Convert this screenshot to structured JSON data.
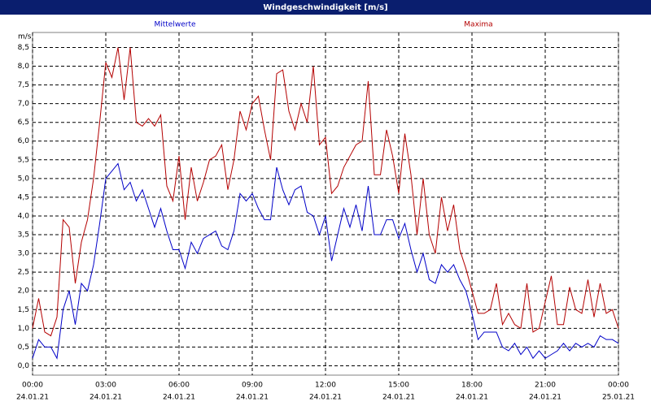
{
  "chart_data": {
    "type": "line",
    "title": "Windgeschwindigkeit [m/s]",
    "y_unit": "m/s",
    "x": [
      0,
      0.25,
      0.5,
      0.75,
      1,
      1.25,
      1.5,
      1.75,
      2,
      2.25,
      2.5,
      2.75,
      3,
      3.25,
      3.5,
      3.75,
      4,
      4.25,
      4.5,
      4.75,
      5,
      5.25,
      5.5,
      5.75,
      6,
      6.25,
      6.5,
      6.75,
      7,
      7.25,
      7.5,
      7.75,
      8,
      8.25,
      8.5,
      8.75,
      9,
      9.25,
      9.5,
      9.75,
      10,
      10.25,
      10.5,
      10.75,
      11,
      11.25,
      11.5,
      11.75,
      12,
      12.25,
      12.5,
      12.75,
      13,
      13.25,
      13.5,
      13.75,
      14,
      14.25,
      14.5,
      14.75,
      15,
      15.25,
      15.5,
      15.75,
      16,
      16.25,
      16.5,
      16.75,
      17,
      17.25,
      17.5,
      17.75,
      18,
      18.25,
      18.5,
      18.75,
      19,
      19.25,
      19.5,
      19.75,
      20,
      20.25,
      20.5,
      20.75,
      21,
      21.25,
      21.5,
      21.75,
      22,
      22.25,
      22.5,
      22.75,
      23,
      23.25,
      23.5,
      23.75,
      24
    ],
    "series": [
      {
        "name": "Mittelwerte",
        "color": "#0000c8",
        "values": [
          0.2,
          0.7,
          0.5,
          0.5,
          0.2,
          1.5,
          2.0,
          1.1,
          2.2,
          2.0,
          2.7,
          3.8,
          5.0,
          5.2,
          5.4,
          4.7,
          4.9,
          4.4,
          4.7,
          4.2,
          3.7,
          4.2,
          3.6,
          3.1,
          3.1,
          2.6,
          3.3,
          3.0,
          3.4,
          3.5,
          3.6,
          3.2,
          3.1,
          3.6,
          4.6,
          4.4,
          4.6,
          4.2,
          3.9,
          3.9,
          5.3,
          4.7,
          4.3,
          4.7,
          4.8,
          4.1,
          4.0,
          3.5,
          4.0,
          2.8,
          3.5,
          4.2,
          3.7,
          4.3,
          3.6,
          4.8,
          3.5,
          3.5,
          3.9,
          3.9,
          3.4,
          3.8,
          3.1,
          2.5,
          3.0,
          2.3,
          2.2,
          2.7,
          2.5,
          2.7,
          2.3,
          2.0,
          1.4,
          0.7,
          0.9,
          0.9,
          0.9,
          0.5,
          0.4,
          0.6,
          0.3,
          0.5,
          0.2,
          0.4,
          0.2,
          0.3,
          0.4,
          0.6,
          0.4,
          0.6,
          0.5,
          0.6,
          0.5,
          0.8,
          0.7,
          0.7,
          0.6
        ]
      },
      {
        "name": "Maxima",
        "color": "#b40000",
        "values": [
          1.0,
          1.8,
          0.9,
          0.8,
          1.3,
          3.9,
          3.7,
          2.2,
          3.3,
          3.9,
          5.0,
          6.5,
          8.1,
          7.7,
          8.5,
          7.1,
          8.5,
          6.5,
          6.4,
          6.6,
          6.4,
          6.7,
          4.8,
          4.4,
          5.6,
          3.9,
          5.3,
          4.4,
          4.9,
          5.5,
          5.6,
          5.9,
          4.7,
          5.5,
          6.8,
          6.3,
          7.0,
          7.2,
          6.3,
          5.5,
          7.8,
          7.9,
          6.8,
          6.3,
          7.0,
          6.5,
          8.0,
          5.9,
          6.1,
          4.6,
          4.8,
          5.3,
          5.6,
          5.9,
          6.0,
          7.6,
          5.1,
          5.1,
          6.3,
          5.6,
          4.6,
          6.2,
          5.1,
          3.5,
          5.0,
          3.5,
          3.0,
          4.5,
          3.6,
          4.3,
          3.1,
          2.6,
          2.0,
          1.4,
          1.4,
          1.5,
          2.2,
          1.1,
          1.4,
          1.1,
          1.0,
          2.2,
          0.9,
          1.0,
          1.7,
          2.4,
          1.1,
          1.1,
          2.1,
          1.5,
          1.4,
          2.3,
          1.3,
          2.2,
          1.4,
          1.5,
          1.0
        ]
      }
    ],
    "xlim": [
      0,
      24
    ],
    "xticks": [
      {
        "value": 0,
        "label": "00:00"
      },
      {
        "value": 3,
        "label": "03:00"
      },
      {
        "value": 6,
        "label": "06:00"
      },
      {
        "value": 9,
        "label": "09:00"
      },
      {
        "value": 12,
        "label": "12:00"
      },
      {
        "value": 15,
        "label": "15:00"
      },
      {
        "value": 18,
        "label": "18:00"
      },
      {
        "value": 21,
        "label": "21:00"
      },
      {
        "value": 24,
        "label": "00:00"
      }
    ],
    "xtick_dates": [
      "24.01.21",
      "24.01.21",
      "24.01.21",
      "24.01.21",
      "24.01.21",
      "24.01.21",
      "24.01.21",
      "24.01.21",
      "25.01.21"
    ],
    "ylim": [
      -0.25,
      8.9
    ],
    "yticks": [
      {
        "value": 0,
        "label": "0,0"
      },
      {
        "value": 0.5,
        "label": "0,5"
      },
      {
        "value": 1,
        "label": "1,0"
      },
      {
        "value": 1.5,
        "label": "1,5"
      },
      {
        "value": 2,
        "label": "2,0"
      },
      {
        "value": 2.5,
        "label": "2,5"
      },
      {
        "value": 3,
        "label": "3,0"
      },
      {
        "value": 3.5,
        "label": "3,5"
      },
      {
        "value": 4,
        "label": "4,0"
      },
      {
        "value": 4.5,
        "label": "4,5"
      },
      {
        "value": 5,
        "label": "5,0"
      },
      {
        "value": 5.5,
        "label": "5,5"
      },
      {
        "value": 6,
        "label": "6,0"
      },
      {
        "value": 6.5,
        "label": "6,5"
      },
      {
        "value": 7,
        "label": "7,0"
      },
      {
        "value": 7.5,
        "label": "7,5"
      },
      {
        "value": 8,
        "label": "8,0"
      },
      {
        "value": 8.5,
        "label": "8,5"
      }
    ],
    "grid": true
  }
}
